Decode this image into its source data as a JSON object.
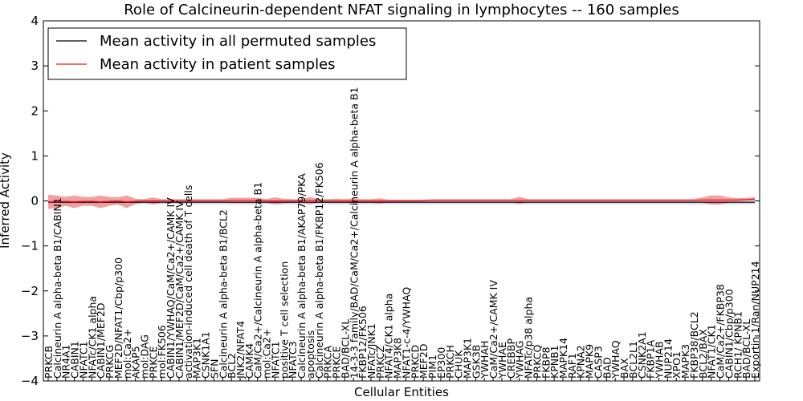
{
  "chart_data": {
    "type": "line",
    "title": "Role of Calcineurin-dependent NFAT signaling in lymphocytes -- 160 samples",
    "xlabel": "Cellular Entities",
    "ylabel": "Inferred Activity",
    "ylim": [
      -4,
      4
    ],
    "yticks": [
      "−4",
      "−3",
      "−2",
      "−1",
      "0",
      "1",
      "2",
      "3",
      "4"
    ],
    "grid": false,
    "legend": {
      "position": "top-left"
    },
    "categories": [
      "PRKCB",
      "Calcineurin A alpha-beta B1/CABIN1",
      "NR4A1",
      "CABIN1",
      "NFATC1",
      "NFATc/CK1 alpha",
      "CABIN1/MEF2D",
      "PRKCG",
      "MEF2D/NFAT1/Cbp/p300",
      "mol:Ca2+",
      "AKAP5",
      "mol:DAG",
      "PRKCE",
      "mol:FK506",
      "CABIN1/YWHAQ/CaM/Ca2+/CAMK IV",
      "CABIN1/MEF2D/CaM/Ca2+/CAMK IV",
      "activation-induced cell death of T cells",
      "MAP3K1",
      "CSNK1A1",
      "SFN",
      "Calcineurin A alpha-beta B1/BCL2",
      "BCL2",
      "JNK2/NFAT4",
      "CAMK4",
      "CaM/Ca2+/Calcineurin A alpha-beta B1",
      "mol:Ca2+",
      "NFATC1",
      "positive T cell selection",
      "NFATC3",
      "Calcineurin A alpha-beta B1/AKAP79/PKA",
      "apoptosis",
      "Calcineurin A alpha-beta B1/FKBP12/FK506",
      "PRKCA",
      "PRKCE",
      "BAD/BCL-XL",
      "14-3-3 family/BAD/CaM/Ca2+/Calcineurin A alpha-beta B1",
      "FKBP12/FK506",
      "NFATc/JNK1",
      "PRKCZ",
      "NFAT4/CK1 alpha",
      "MAP3K8",
      "NFAT1-c-4/YWHAQ",
      "PRKCD",
      "MEF2D",
      "PIM1",
      "EP300",
      "PRKCH",
      "CHUK",
      "MAP3K1",
      "GSK3B",
      "YWHAH",
      "CaM/Ca2+/CAMK IV",
      "YWHAE",
      "CREBBP",
      "YWHAG",
      "NFATc/p38 alpha",
      "PRKCQ",
      "FKBP8",
      "KPNB1",
      "MAPK14",
      "RAF1",
      "KPNA2",
      "MAPK9",
      "CASP3",
      "BAD",
      "YWHAQ",
      "BAX",
      "BCL2L1",
      "CSNK2A1",
      "FKBP1A",
      "YWHAB",
      "NUP214",
      "XPO1",
      "MAPK3",
      "FKBP38/BCL2",
      "BCL2/BAX",
      "NFAT1/CK1",
      "CaM/Ca2+/FKBP38",
      "CABIN1/Cbp/p300",
      "RCH1/ KPNB1",
      "BAD/BCL-XL",
      "Exportin 1/Ran/NUP214"
    ],
    "series": [
      {
        "name": "Mean activity in all permuted samples",
        "color": "#000000",
        "band_color": "#b8c4e8",
        "values": [
          -0.03,
          -0.03,
          -0.03,
          -0.03,
          -0.03,
          -0.03,
          -0.03,
          -0.03,
          -0.03,
          -0.03,
          -0.03,
          -0.03,
          -0.03,
          -0.03,
          -0.03,
          -0.03,
          -0.03,
          -0.03,
          -0.03,
          -0.03,
          -0.03,
          -0.03,
          -0.03,
          -0.03,
          -0.03,
          -0.03,
          -0.03,
          -0.03,
          -0.03,
          -0.03,
          -0.03,
          -0.03,
          -0.03,
          -0.03,
          -0.03,
          -0.03,
          -0.03,
          -0.03,
          -0.03,
          -0.03,
          -0.03,
          -0.03,
          -0.03,
          -0.03,
          -0.03,
          -0.03,
          -0.03,
          -0.03,
          -0.03,
          -0.03,
          -0.03,
          -0.03,
          -0.03,
          -0.03,
          -0.03,
          -0.03,
          -0.03,
          -0.03,
          -0.03,
          -0.03,
          -0.03,
          -0.03,
          -0.03,
          -0.03,
          -0.03,
          -0.03,
          -0.03,
          -0.03,
          -0.03,
          -0.03,
          -0.03,
          -0.03,
          -0.03,
          -0.03,
          -0.03,
          -0.03,
          -0.03,
          -0.03,
          -0.03,
          -0.03,
          -0.03,
          -0.03
        ],
        "band": [
          0.05,
          0.05,
          0.05,
          0.05,
          0.05,
          0.05,
          0.05,
          0.05,
          0.05,
          0.05,
          0.05,
          0.05,
          0.05,
          0.05,
          0.05,
          0.05,
          0.05,
          0.05,
          0.05,
          0.05,
          0.05,
          0.05,
          0.05,
          0.05,
          0.05,
          0.05,
          0.05,
          0.05,
          0.05,
          0.05,
          0.05,
          0.05,
          0.05,
          0.05,
          0.05,
          0.05,
          0.05,
          0.05,
          0.05,
          0.05,
          0.05,
          0.05,
          0.05,
          0.05,
          0.05,
          0.05,
          0.05,
          0.05,
          0.05,
          0.05,
          0.05,
          0.05,
          0.05,
          0.05,
          0.05,
          0.05,
          0.05,
          0.05,
          0.05,
          0.05,
          0.05,
          0.05,
          0.05,
          0.05,
          0.05,
          0.05,
          0.05,
          0.05,
          0.05,
          0.05,
          0.05,
          0.05,
          0.05,
          0.05,
          0.05,
          0.05,
          0.05,
          0.05,
          0.05,
          0.05,
          0.05,
          0.05
        ]
      },
      {
        "name": "Mean activity in patient samples",
        "color": "#e41a1c",
        "band_color": "#f08080",
        "values": [
          -0.02,
          -0.02,
          -0.01,
          -0.02,
          -0.01,
          -0.01,
          -0.02,
          -0.01,
          0.0,
          -0.02,
          -0.01,
          0.0,
          0.0,
          0.0,
          0.0,
          0.0,
          0.0,
          0.0,
          0.0,
          0.0,
          0.0,
          0.01,
          0.01,
          0.01,
          0.01,
          0.0,
          0.0,
          0.0,
          0.0,
          0.0,
          0.01,
          0.0,
          0.0,
          0.0,
          0.0,
          0.0,
          0.0,
          0.0,
          0.0,
          0.0,
          0.0,
          0.0,
          0.0,
          0.0,
          0.01,
          0.01,
          0.01,
          0.01,
          0.01,
          0.01,
          0.01,
          0.01,
          0.01,
          0.01,
          0.01,
          0.01,
          0.01,
          0.01,
          0.01,
          0.01,
          0.01,
          0.01,
          0.01,
          0.01,
          0.01,
          0.01,
          0.01,
          0.01,
          0.01,
          0.01,
          0.01,
          0.01,
          0.01,
          0.01,
          0.01,
          0.02,
          0.02,
          0.02,
          0.02,
          0.02,
          0.03,
          0.04
        ],
        "band": [
          0.16,
          0.14,
          0.1,
          0.14,
          0.1,
          0.1,
          0.14,
          0.1,
          0.08,
          0.14,
          0.06,
          0.04,
          0.08,
          0.04,
          0.04,
          0.04,
          0.04,
          0.04,
          0.04,
          0.04,
          0.04,
          0.06,
          0.06,
          0.06,
          0.06,
          0.04,
          0.08,
          0.05,
          0.04,
          0.04,
          0.08,
          0.04,
          0.04,
          0.05,
          0.04,
          0.06,
          0.04,
          0.04,
          0.06,
          0.03,
          0.03,
          0.03,
          0.03,
          0.03,
          0.03,
          0.03,
          0.03,
          0.03,
          0.03,
          0.03,
          0.03,
          0.03,
          0.03,
          0.03,
          0.08,
          0.03,
          0.03,
          0.03,
          0.03,
          0.03,
          0.03,
          0.03,
          0.03,
          0.03,
          0.03,
          0.03,
          0.03,
          0.03,
          0.03,
          0.03,
          0.03,
          0.03,
          0.03,
          0.03,
          0.03,
          0.06,
          0.1,
          0.1,
          0.06,
          0.04,
          0.04,
          0.04
        ]
      }
    ]
  }
}
